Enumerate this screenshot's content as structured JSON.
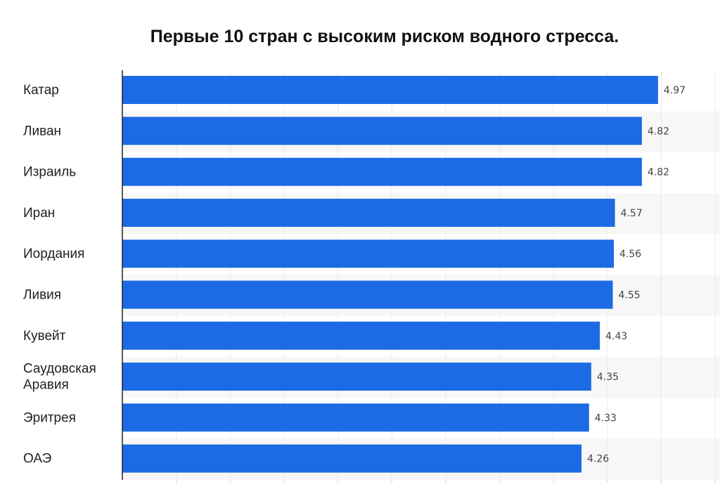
{
  "chart_data": {
    "type": "bar",
    "orientation": "horizontal",
    "title": "Первые 10 стран с высоким риском водного стресса.",
    "categories": [
      "Катар",
      "Ливан",
      "Израиль",
      "Иран",
      "Иордания",
      "Ливия",
      "Кувейт",
      "Саудовская Аравия",
      "Эритрея",
      "ОАЭ"
    ],
    "category_lines": [
      [
        "Катар"
      ],
      [
        "Ливан"
      ],
      [
        "Израиль"
      ],
      [
        "Иран"
      ],
      [
        "Иордания"
      ],
      [
        "Ливия"
      ],
      [
        "Кувейт"
      ],
      [
        "Саудовская",
        "Аравия"
      ],
      [
        "Эритрея"
      ],
      [
        "ОАЭ"
      ]
    ],
    "values": [
      4.97,
      4.82,
      4.82,
      4.57,
      4.56,
      4.55,
      4.43,
      4.35,
      4.33,
      4.26
    ],
    "value_labels": [
      "4.97",
      "4.82",
      "4.82",
      "4.57",
      "4.56",
      "4.55",
      "4.43",
      "4.35",
      "4.33",
      "4.26"
    ],
    "xlim": [
      0,
      5.5
    ],
    "grid_step": 0.5,
    "grid": true,
    "xlabel": "",
    "ylabel": "",
    "bar_color": "#1c6be4"
  }
}
